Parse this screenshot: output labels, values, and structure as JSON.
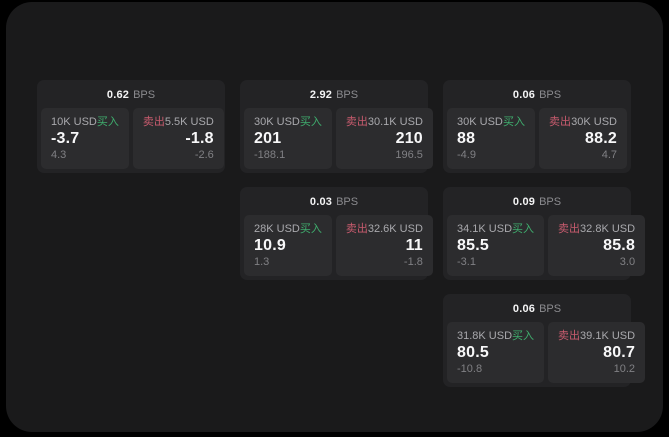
{
  "unit_label": "BPS",
  "buy_label": "买入",
  "sell_label": "卖出",
  "colors": {
    "buy": "#3fae6e",
    "sell": "#c85b6e",
    "window_bg": "#1a1a1b",
    "card_bg": "#232325",
    "panel_bg": "#2c2c2e"
  },
  "cards": [
    {
      "col": 1,
      "row": 1,
      "bps": "0.62",
      "buy": {
        "notional": "10K USD",
        "price": "-3.7",
        "delta": "4.3"
      },
      "sell": {
        "notional": "5.5K USD",
        "price": "-1.8",
        "delta": "-2.6"
      }
    },
    {
      "col": 2,
      "row": 1,
      "bps": "2.92",
      "buy": {
        "notional": "30K USD",
        "price": "201",
        "delta": "-188.1"
      },
      "sell": {
        "notional": "30.1K USD",
        "price": "210",
        "delta": "196.5"
      }
    },
    {
      "col": 3,
      "row": 1,
      "bps": "0.06",
      "buy": {
        "notional": "30K USD",
        "price": "88",
        "delta": "-4.9"
      },
      "sell": {
        "notional": "30K USD",
        "price": "88.2",
        "delta": "4.7"
      }
    },
    {
      "col": 2,
      "row": 2,
      "bps": "0.03",
      "buy": {
        "notional": "28K USD",
        "price": "10.9",
        "delta": "1.3"
      },
      "sell": {
        "notional": "32.6K USD",
        "price": "11",
        "delta": "-1.8"
      }
    },
    {
      "col": 3,
      "row": 2,
      "bps": "0.09",
      "buy": {
        "notional": "34.1K USD",
        "price": "85.5",
        "delta": "-3.1"
      },
      "sell": {
        "notional": "32.8K USD",
        "price": "85.8",
        "delta": "3.0"
      }
    },
    {
      "col": 3,
      "row": 3,
      "bps": "0.06",
      "buy": {
        "notional": "31.8K USD",
        "price": "80.5",
        "delta": "-10.8"
      },
      "sell": {
        "notional": "39.1K USD",
        "price": "80.7",
        "delta": "10.2"
      }
    }
  ]
}
